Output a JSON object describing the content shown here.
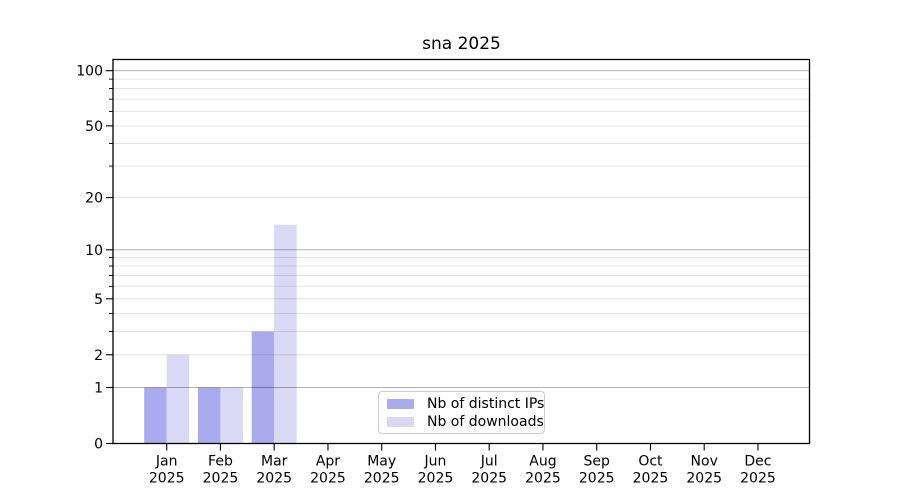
{
  "chart_data": {
    "type": "bar",
    "title": "sna 2025",
    "categories": [
      "Jan 2025",
      "Feb 2025",
      "Mar 2025",
      "Apr 2025",
      "May 2025",
      "Jun 2025",
      "Jul 2025",
      "Aug 2025",
      "Sep 2025",
      "Oct 2025",
      "Nov 2025",
      "Dec 2025"
    ],
    "category_line1": [
      "Jan",
      "Feb",
      "Mar",
      "Apr",
      "May",
      "Jun",
      "Jul",
      "Aug",
      "Sep",
      "Oct",
      "Nov",
      "Dec"
    ],
    "category_line2": "2025",
    "series": [
      {
        "name": "Nb of distinct IPs",
        "color": "#aaaaee",
        "values": [
          1,
          1,
          3,
          0,
          0,
          0,
          0,
          0,
          0,
          0,
          0,
          0
        ]
      },
      {
        "name": "Nb of downloads",
        "color": "#d9d9f6",
        "values": [
          2,
          1,
          14,
          0,
          0,
          0,
          0,
          0,
          0,
          0,
          0,
          0
        ]
      }
    ],
    "xlabel": "",
    "ylabel": "",
    "y_axis": {
      "scale": "log1p",
      "min": 0,
      "max": 115,
      "tick_values": [
        0,
        1,
        2,
        5,
        10,
        20,
        50,
        100
      ],
      "major_gridlines": [
        1,
        10,
        100
      ],
      "minor_gridlines": [
        2,
        3,
        4,
        5,
        6,
        7,
        8,
        9,
        20,
        30,
        40,
        50,
        60,
        70,
        80,
        90
      ]
    },
    "grid": true,
    "legend": {
      "position": "lower center",
      "entries": [
        "Nb of distinct IPs",
        "Nb of downloads"
      ]
    },
    "colors": {
      "background": "#ffffff",
      "spine": "#000000",
      "text": "#000000",
      "major_grid": "rgba(0,0,0,0.30)",
      "minor_grid": "rgba(0,0,0,0.10)",
      "legend_border": "#cccccc"
    }
  }
}
